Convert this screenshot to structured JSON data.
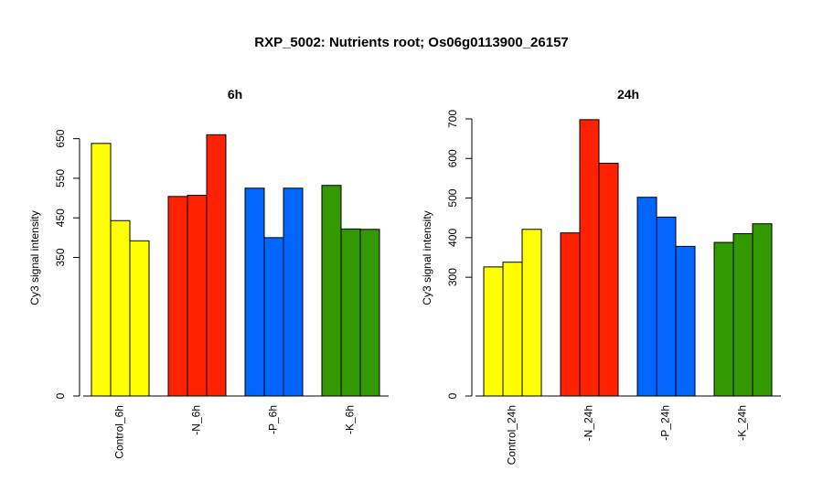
{
  "title": "RXP_5002: Nutrients root; Os06g0113900_26157",
  "chart_data": [
    {
      "type": "bar",
      "title": "6h",
      "ylabel": "Cy3 signal intensity",
      "ylim": [
        0,
        700
      ],
      "yticks": [
        0,
        350,
        450,
        550,
        650
      ],
      "groups": [
        "Control_6h",
        "-N_6h",
        "-P_6h",
        "-K_6h"
      ],
      "colors": [
        "#ffff00",
        "#ff2200",
        "#0066ff",
        "#339900"
      ],
      "values": [
        [
          638,
          443,
          392
        ],
        [
          504,
          507,
          660
        ],
        [
          525,
          400,
          525
        ],
        [
          532,
          422,
          421
        ]
      ]
    },
    {
      "type": "bar",
      "title": "24h",
      "ylabel": "Cy3 signal intensity",
      "ylim": [
        0,
        700
      ],
      "yticks": [
        0,
        300,
        400,
        500,
        600,
        700
      ],
      "groups": [
        "Control_24h",
        "-N_24h",
        "-P_24h",
        "-K_24h"
      ],
      "colors": [
        "#ffff00",
        "#ff2200",
        "#0066ff",
        "#339900"
      ],
      "values": [
        [
          326,
          338,
          421
        ],
        [
          412,
          698,
          588
        ],
        [
          502,
          452,
          378
        ],
        [
          388,
          410,
          435
        ]
      ]
    }
  ]
}
